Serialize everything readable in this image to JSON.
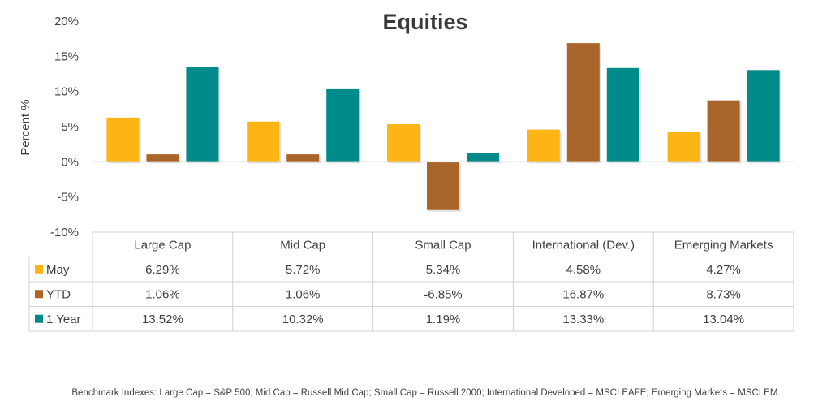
{
  "chart_data": {
    "type": "bar",
    "title": "Equities",
    "ylabel": "Percent %",
    "xlabel": "",
    "ylim": [
      -10,
      20
    ],
    "yticks": [
      "20%",
      "15%",
      "10%",
      "5%",
      "0%",
      "-5%",
      "-10%"
    ],
    "yticks_values": [
      20,
      15,
      10,
      5,
      0,
      -5,
      -10
    ],
    "categories": [
      "Large Cap",
      "Mid Cap",
      "Small Cap",
      "International (Dev.)",
      "Emerging Markets"
    ],
    "series": [
      {
        "name": "May",
        "color": "#FDB515",
        "values": [
          6.29,
          5.72,
          5.34,
          4.58,
          4.27
        ],
        "labels": [
          "6.29%",
          "5.72%",
          "5.34%",
          "4.58%",
          "4.27%"
        ]
      },
      {
        "name": "YTD",
        "color": "#A9652A",
        "values": [
          1.06,
          1.06,
          -6.85,
          16.87,
          8.73
        ],
        "labels": [
          "1.06%",
          "1.06%",
          "-6.85%",
          "16.87%",
          "8.73%"
        ]
      },
      {
        "name": "1 Year",
        "color": "#008B8B",
        "values": [
          13.52,
          10.32,
          1.19,
          13.33,
          13.04
        ],
        "labels": [
          "13.52%",
          "10.32%",
          "1.19%",
          "13.33%",
          "13.04%"
        ]
      }
    ],
    "grid": false,
    "legend": "data-table"
  },
  "footnote": "Benchmark Indexes: Large Cap = S&P 500; Mid Cap = Russell Mid Cap; Small Cap = Russell 2000; International Developed = MSCI EAFE; Emerging Markets = MSCI EM."
}
